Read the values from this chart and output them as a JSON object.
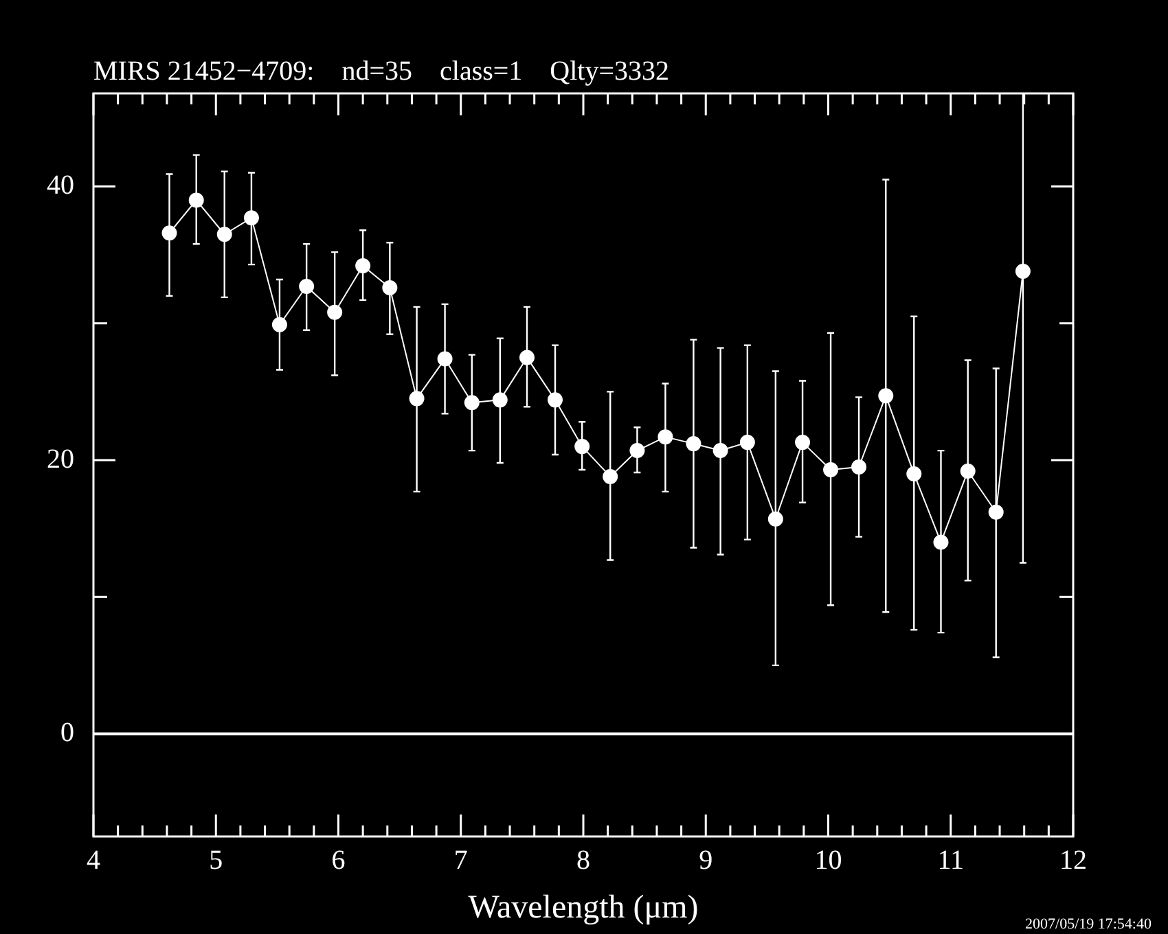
{
  "chart_data": {
    "type": "line",
    "title": "MIRS 21452−4709:    nd=35    class=1    Qlty=3332",
    "xlabel": "Wavelength (μm)",
    "annotations": [
      "2007/05/19 17:54:40"
    ],
    "x": [
      4.62,
      4.84,
      5.07,
      5.29,
      5.52,
      5.74,
      5.97,
      6.2,
      6.42,
      6.64,
      6.87,
      7.09,
      7.32,
      7.54,
      7.77,
      7.99,
      8.22,
      8.44,
      8.67,
      8.9,
      9.12,
      9.34,
      9.57,
      9.79,
      10.02,
      10.25,
      10.47,
      10.7,
      10.92,
      11.14,
      11.37,
      11.59
    ],
    "series": [
      {
        "color": "#ffffff",
        "values": [
          36.6,
          39.0,
          36.5,
          37.7,
          29.9,
          32.7,
          30.8,
          34.2,
          32.6,
          24.5,
          27.4,
          24.2,
          24.4,
          27.5,
          24.4,
          21.0,
          18.8,
          20.7,
          21.7,
          21.2,
          20.7,
          21.3,
          15.7,
          21.3,
          19.3,
          19.5,
          24.7,
          19.0,
          14.0,
          19.2,
          16.2,
          33.8
        ],
        "errors": [
          [
            32.0,
            40.9
          ],
          [
            35.8,
            42.3
          ],
          [
            31.9,
            41.1
          ],
          [
            34.3,
            41.0
          ],
          [
            26.6,
            33.2
          ],
          [
            29.5,
            35.8
          ],
          [
            26.2,
            35.2
          ],
          [
            31.7,
            36.8
          ],
          [
            29.2,
            35.9
          ],
          [
            17.7,
            31.2
          ],
          [
            23.4,
            31.4
          ],
          [
            20.7,
            27.7
          ],
          [
            19.8,
            28.9
          ],
          [
            23.9,
            31.2
          ],
          [
            20.4,
            28.4
          ],
          [
            19.3,
            22.8
          ],
          [
            12.7,
            25.0
          ],
          [
            19.1,
            22.4
          ],
          [
            17.7,
            25.6
          ],
          [
            13.6,
            28.8
          ],
          [
            13.1,
            28.2
          ],
          [
            14.2,
            28.4
          ],
          [
            5.0,
            26.5
          ],
          [
            16.9,
            25.8
          ],
          [
            9.4,
            29.3
          ],
          [
            14.4,
            24.6
          ],
          [
            8.9,
            40.5
          ],
          [
            7.6,
            30.5
          ],
          [
            7.4,
            20.7
          ],
          [
            11.2,
            27.3
          ],
          [
            5.6,
            26.7
          ],
          [
            12.5,
            46.8
          ]
        ]
      }
    ],
    "marker": "circle",
    "line_style": "solid",
    "xlim": [
      4,
      12
    ],
    "xticks": [
      4,
      {
        "value": 4.2,
        "label": null
      },
      {
        "value": 4.4,
        "label": null
      },
      {
        "value": 4.6,
        "label": null
      },
      {
        "value": 4.8,
        "label": null
      },
      5,
      {
        "value": 5.2,
        "label": null
      },
      {
        "value": 5.4,
        "label": null
      },
      {
        "value": 5.6,
        "label": null
      },
      {
        "value": 5.8,
        "label": null
      },
      6,
      {
        "value": 6.2,
        "label": null
      },
      {
        "value": 6.4,
        "label": null
      },
      {
        "value": 6.6,
        "label": null
      },
      {
        "value": 6.8,
        "label": null
      },
      7,
      {
        "value": 7.2,
        "label": null
      },
      {
        "value": 7.4,
        "label": null
      },
      {
        "value": 7.6,
        "label": null
      },
      {
        "value": 7.8,
        "label": null
      },
      8,
      {
        "value": 8.2,
        "label": null
      },
      {
        "value": 8.4,
        "label": null
      },
      {
        "value": 8.6,
        "label": null
      },
      {
        "value": 8.8,
        "label": null
      },
      9,
      {
        "value": 9.2,
        "label": null
      },
      {
        "value": 9.4,
        "label": null
      },
      {
        "value": 9.6,
        "label": null
      },
      {
        "value": 9.8,
        "label": null
      },
      10,
      {
        "value": 10.2,
        "label": null
      },
      {
        "value": 10.4,
        "label": null
      },
      {
        "value": 10.6,
        "label": null
      },
      {
        "value": 10.8,
        "label": null
      },
      11,
      {
        "value": 11.2,
        "label": null
      },
      {
        "value": 11.4,
        "label": null
      },
      {
        "value": 11.6,
        "label": null
      },
      {
        "value": 11.8,
        "label": null
      },
      12
    ],
    "ylim": [
      -7.5,
      46.8
    ],
    "yticks": [
      0,
      {
        "value": 10,
        "label": null
      },
      20,
      {
        "value": 30,
        "label": null
      },
      40
    ],
    "ref_lines": [
      {
        "axis": "y",
        "value": 0,
        "color": "#ffffff"
      }
    ],
    "grid": false,
    "legend": false
  }
}
